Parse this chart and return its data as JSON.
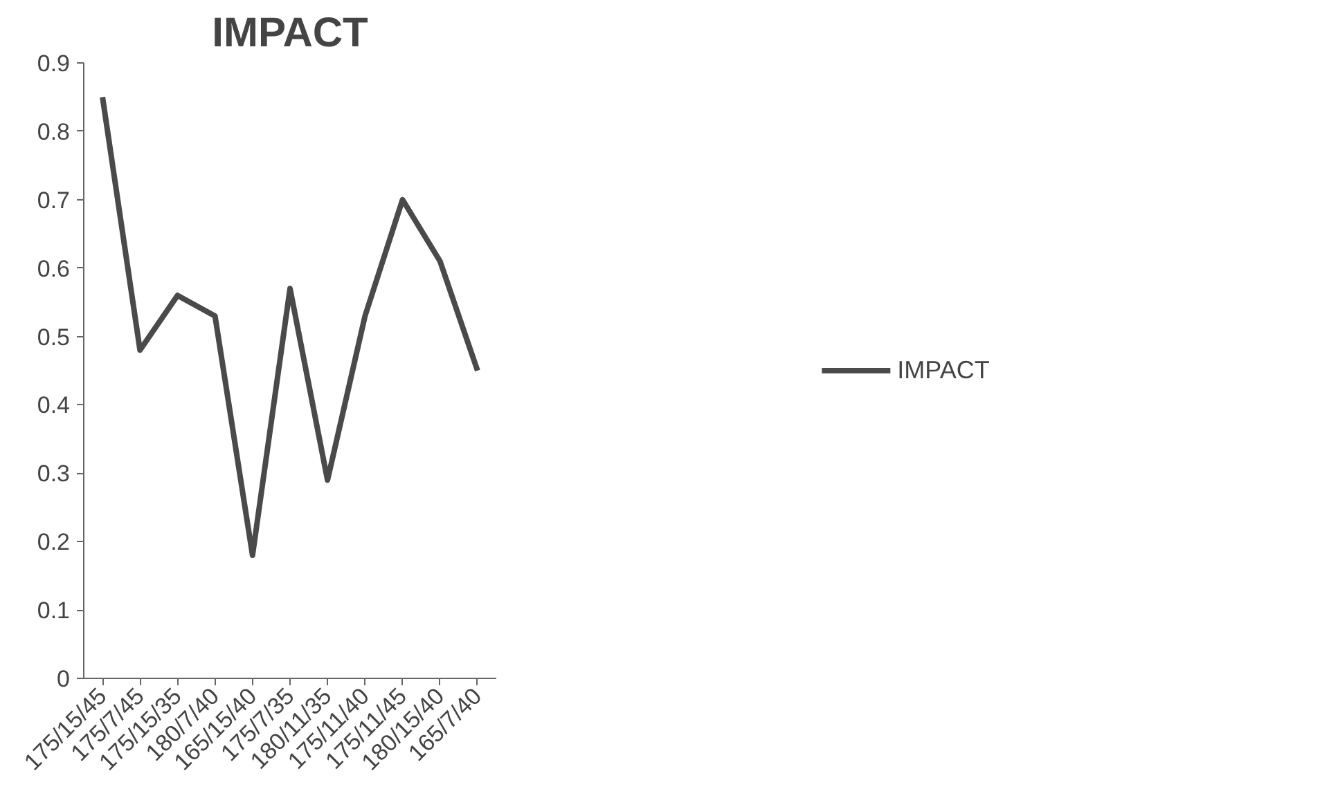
{
  "chart_data": {
    "type": "line",
    "title": "IMPACT",
    "categories": [
      "175/15/45",
      "175/7/45",
      "175/15/35",
      "180/7/40",
      "165/15/40",
      "175/7/35",
      "180/11/35",
      "175/11/40",
      "175/11/45",
      "180/15/40",
      "165/7/40"
    ],
    "series": [
      {
        "name": "IMPACT",
        "color": "#4a4a4a",
        "values": [
          0.85,
          0.48,
          0.56,
          0.53,
          0.18,
          0.57,
          0.29,
          0.53,
          0.7,
          0.61,
          0.45
        ]
      }
    ],
    "ylim": [
      0,
      0.9
    ],
    "yticks": [
      0,
      0.1,
      0.2,
      0.3,
      0.4,
      0.5,
      0.6,
      0.7,
      0.8,
      0.9
    ],
    "grid": false,
    "legend": "right",
    "marker": "none",
    "line_style": "solid"
  }
}
